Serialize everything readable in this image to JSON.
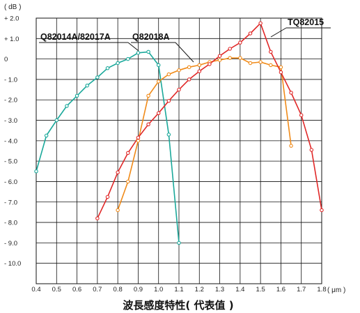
{
  "chart_data": {
    "type": "line",
    "title": "波長感度特性( 代表值 )",
    "ylabel_unit": "( dB )",
    "xlabel_unit": "( μm )",
    "xlim": [
      0.4,
      1.8
    ],
    "ylim": [
      -11.0,
      2.0
    ],
    "grid": true,
    "x_ticks": [
      0.4,
      0.5,
      0.6,
      0.7,
      0.8,
      0.9,
      1.0,
      1.1,
      1.2,
      1.3,
      1.4,
      1.5,
      1.6,
      1.7,
      1.8
    ],
    "x_tick_labels": [
      "0.4",
      "0.5",
      "0.6",
      "0.7",
      "0.8",
      "0.9",
      "1.0",
      "1.1",
      "1.2",
      "1.3",
      "1.4",
      "1.5",
      "1.6",
      "1.7",
      "1.8"
    ],
    "y_ticks": [
      2,
      1,
      0,
      -1,
      -2,
      -3,
      -4,
      -5,
      -6,
      -7,
      -8,
      -9,
      -10
    ],
    "y_tick_labels": [
      "+ 2.0",
      "+ 1.0",
      "0",
      "- 1.0",
      "- 2.0",
      "- 3.0",
      "- 4.0",
      "- 5.0",
      "- 6.0",
      "- 7.0",
      "- 8.0",
      "- 9.0",
      "- 10.0"
    ],
    "series": [
      {
        "name": "Q82014A/82017A",
        "color": "#1aa89a",
        "x": [
          0.4,
          0.45,
          0.5,
          0.55,
          0.6,
          0.65,
          0.7,
          0.75,
          0.8,
          0.85,
          0.9,
          0.95,
          1.0,
          1.05,
          1.1
        ],
        "y": [
          -5.5,
          -3.75,
          -3.0,
          -2.3,
          -1.8,
          -1.3,
          -0.9,
          -0.45,
          -0.2,
          0.0,
          0.3,
          0.35,
          -0.3,
          -3.7,
          -9.0
        ]
      },
      {
        "name": "Q82018A",
        "color": "#f08a18",
        "x": [
          0.8,
          0.85,
          0.9,
          0.95,
          1.0,
          1.05,
          1.1,
          1.15,
          1.2,
          1.25,
          1.3,
          1.35,
          1.4,
          1.45,
          1.5,
          1.55,
          1.6,
          1.65
        ],
        "y": [
          -7.4,
          -6.0,
          -4.0,
          -1.8,
          -1.1,
          -0.75,
          -0.55,
          -0.4,
          -0.3,
          -0.15,
          -0.05,
          0.05,
          0.05,
          -0.2,
          -0.15,
          -0.3,
          -0.4,
          -4.25
        ]
      },
      {
        "name": "TQ82015",
        "color": "#e02828",
        "x": [
          0.7,
          0.75,
          0.8,
          0.85,
          0.9,
          0.95,
          1.0,
          1.05,
          1.1,
          1.15,
          1.2,
          1.25,
          1.3,
          1.35,
          1.4,
          1.45,
          1.5,
          1.55,
          1.6,
          1.65,
          1.7,
          1.75,
          1.8
        ],
        "y": [
          -7.8,
          -6.75,
          -5.55,
          -4.6,
          -3.85,
          -3.2,
          -2.65,
          -2.05,
          -1.5,
          -1.0,
          -0.6,
          -0.25,
          0.15,
          0.5,
          0.8,
          1.25,
          1.75,
          0.35,
          -0.65,
          -1.65,
          -2.75,
          -4.45,
          -7.4
        ]
      }
    ]
  }
}
